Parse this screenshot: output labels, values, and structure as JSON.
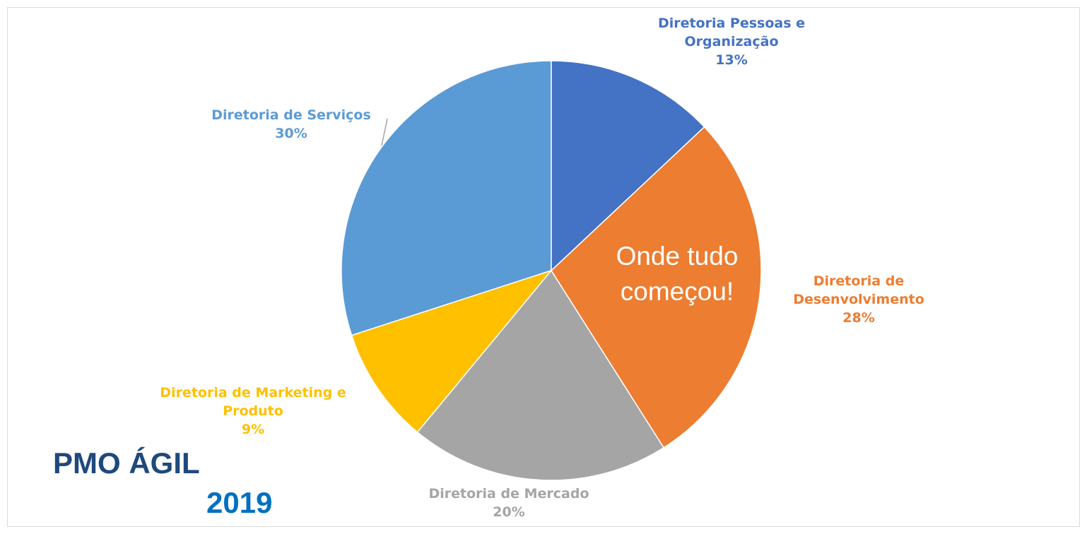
{
  "chart_data": {
    "type": "pie",
    "categories": [
      "Diretoria Pessoas e Organização",
      "Diretoria de Desenvolvimento",
      "Diretoria de Mercado",
      "Diretoria de Marketing e Produto",
      "Diretoria de Serviços"
    ],
    "values": [
      13,
      28,
      20,
      9,
      30
    ],
    "value_labels": [
      "13%",
      "28%",
      "20%",
      "9%",
      "30%"
    ],
    "colors": [
      "#4472c4",
      "#ed7d31",
      "#a5a5a5",
      "#ffc000",
      "#5b9bd5"
    ],
    "annotations": [
      "Onde tudo começou!",
      "PMO ÁGIL",
      "2019"
    ]
  }
}
